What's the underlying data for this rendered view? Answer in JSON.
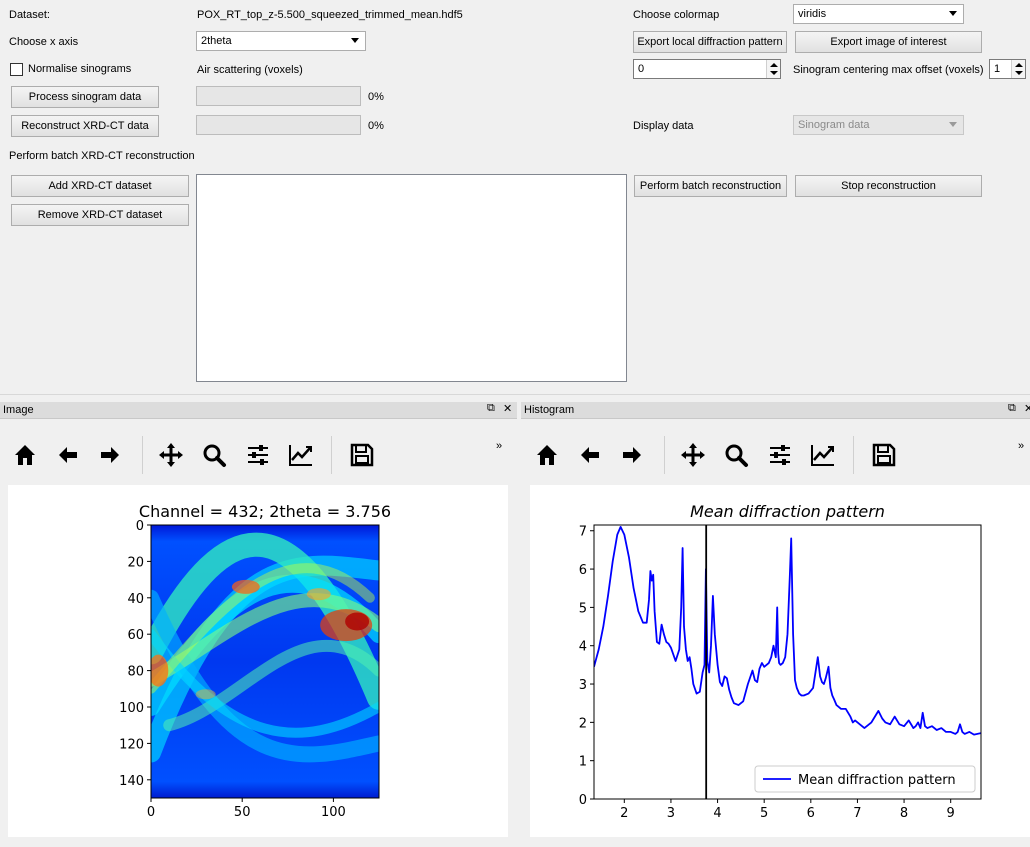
{
  "controls": {
    "dataset_label": "Dataset:",
    "dataset_value": "POX_RT_top_z-5.500_squeezed_trimmed_mean.hdf5",
    "choose_x_axis_label": "Choose x axis",
    "x_axis_value": "2theta",
    "normalise_label": "Normalise sinograms",
    "air_scattering_label": "Air scattering (voxels)",
    "process_button": "Process sinogram data",
    "process_progress": "0%",
    "reconstruct_button": "Reconstruct XRD-CT data",
    "reconstruct_progress": "0%",
    "batch_title": "Perform batch XRD-CT reconstruction",
    "add_button": "Add XRD-CT dataset",
    "remove_button": "Remove XRD-CT dataset",
    "choose_colormap_label": "Choose colormap",
    "colormap_value": "viridis",
    "export_local_button": "Export local diffraction pattern",
    "export_image_button": "Export image of interest",
    "air_scattering_value": "0",
    "centering_label": "Sinogram centering max offset (voxels)",
    "centering_value": "1",
    "display_data_label": "Display data",
    "display_data_value": "Sinogram data",
    "batch_reconstruct_button": "Perform batch reconstruction",
    "stop_button": "Stop reconstruction"
  },
  "docks": {
    "image_title": "Image",
    "histogram_title": "Histogram",
    "float_icon": "⧉",
    "close_icon": "✕",
    "overflow": "»"
  },
  "toolbar_icons": [
    "home-icon",
    "back-arrow-icon",
    "forward-arrow-icon",
    "pan-icon",
    "zoom-icon",
    "subplots-config-icon",
    "axes-edit-icon",
    "save-icon"
  ],
  "image_plot": {
    "title": "Channel = 432; 2theta = 3.756",
    "colormap": "jet",
    "x_ticks": [
      "0",
      "50",
      "100"
    ],
    "y_ticks": [
      "0",
      "20",
      "40",
      "60",
      "80",
      "100",
      "120",
      "140"
    ],
    "x_range": [
      0,
      125
    ],
    "y_range": [
      0,
      150
    ]
  },
  "chart_data": {
    "type": "line",
    "title": "Mean diffraction pattern",
    "xlim": [
      1.35,
      9.65
    ],
    "ylim": [
      0,
      7.15
    ],
    "x_ticks": [
      "2",
      "3",
      "4",
      "5",
      "6",
      "7",
      "8",
      "9"
    ],
    "y_ticks": [
      "0",
      "1",
      "2",
      "3",
      "4",
      "5",
      "6",
      "7"
    ],
    "vline_x": 3.756,
    "legend": "lower right",
    "series": [
      {
        "name": "Mean diffraction pattern",
        "color": "#0000ff",
        "x": [
          1.35,
          1.45,
          1.55,
          1.65,
          1.75,
          1.85,
          1.92,
          2.0,
          2.1,
          2.2,
          2.3,
          2.4,
          2.48,
          2.53,
          2.56,
          2.59,
          2.62,
          2.65,
          2.7,
          2.75,
          2.8,
          2.85,
          2.9,
          2.95,
          3.0,
          3.1,
          3.18,
          3.22,
          3.25,
          3.28,
          3.32,
          3.36,
          3.4,
          3.44,
          3.48,
          3.55,
          3.62,
          3.68,
          3.72,
          3.75,
          3.78,
          3.82,
          3.86,
          3.9,
          3.94,
          4.0,
          4.05,
          4.1,
          4.15,
          4.2,
          4.25,
          4.3,
          4.35,
          4.45,
          4.55,
          4.65,
          4.75,
          4.8,
          4.85,
          4.9,
          4.95,
          5.0,
          5.05,
          5.1,
          5.15,
          5.2,
          5.25,
          5.28,
          5.3,
          5.32,
          5.35,
          5.4,
          5.45,
          5.5,
          5.55,
          5.58,
          5.62,
          5.66,
          5.7,
          5.75,
          5.8,
          5.85,
          5.95,
          6.05,
          6.15,
          6.2,
          6.24,
          6.28,
          6.32,
          6.38,
          6.42,
          6.46,
          6.5,
          6.55,
          6.65,
          6.75,
          6.85,
          6.9,
          6.95,
          7.05,
          7.15,
          7.3,
          7.45,
          7.53,
          7.6,
          7.7,
          7.8,
          7.9,
          8.0,
          8.1,
          8.2,
          8.25,
          8.3,
          8.35,
          8.4,
          8.45,
          8.5,
          8.6,
          8.7,
          8.8,
          8.9,
          9.0,
          9.1,
          9.15,
          9.2,
          9.25,
          9.3,
          9.4,
          9.5,
          9.65
        ],
        "y": [
          3.45,
          3.9,
          4.5,
          5.3,
          6.2,
          6.9,
          7.1,
          6.9,
          6.3,
          5.5,
          4.9,
          4.6,
          4.6,
          5.2,
          5.95,
          5.7,
          5.85,
          4.9,
          4.1,
          4.05,
          4.55,
          4.3,
          4.1,
          4.05,
          3.95,
          3.6,
          3.9,
          5.0,
          6.55,
          4.5,
          3.9,
          3.6,
          3.7,
          3.4,
          3.0,
          2.75,
          2.8,
          3.3,
          3.5,
          6.0,
          3.6,
          3.3,
          4.0,
          5.3,
          4.3,
          3.5,
          3.05,
          2.95,
          3.2,
          3.15,
          2.85,
          2.65,
          2.5,
          2.45,
          2.55,
          3.0,
          3.35,
          3.1,
          3.05,
          3.4,
          3.55,
          3.45,
          3.5,
          3.55,
          3.7,
          4.0,
          3.7,
          5.0,
          3.8,
          3.55,
          3.5,
          3.55,
          3.7,
          4.3,
          5.8,
          6.8,
          4.3,
          3.1,
          2.9,
          2.75,
          2.7,
          2.7,
          2.75,
          2.9,
          3.7,
          3.2,
          3.05,
          3.0,
          3.15,
          3.45,
          2.9,
          2.7,
          2.6,
          2.45,
          2.35,
          2.35,
          2.15,
          2.0,
          2.05,
          1.95,
          1.85,
          2.0,
          2.3,
          2.1,
          2.0,
          1.95,
          2.15,
          1.95,
          1.9,
          2.05,
          1.85,
          1.9,
          2.0,
          1.85,
          2.25,
          1.9,
          1.85,
          1.9,
          1.8,
          1.85,
          1.75,
          1.75,
          1.7,
          1.75,
          1.95,
          1.75,
          1.7,
          1.75,
          1.68,
          1.72
        ]
      }
    ]
  }
}
